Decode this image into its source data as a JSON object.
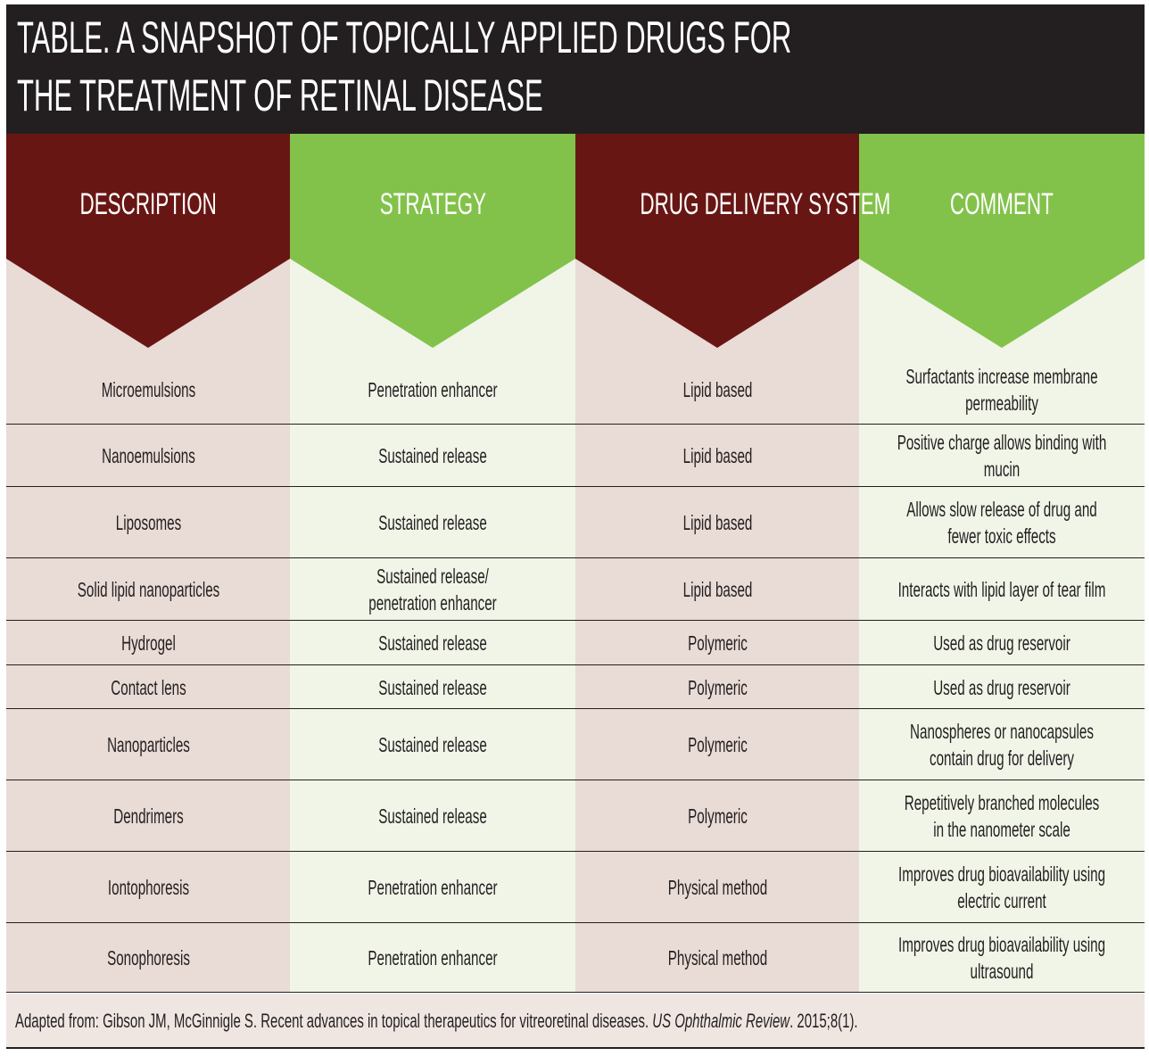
{
  "title": {
    "line1": "TABLE. A SNAPSHOT OF TOPICALLY APPLIED DRUGS FOR",
    "line2": "THE TREATMENT OF RETINAL DISEASE"
  },
  "colors": {
    "dark_red": "#681614",
    "green": "#82c24a",
    "title_bg": "#231f20",
    "pink_bg": "#e9dbd5",
    "light_green_bg": "#f0f5e8"
  },
  "headers": [
    "DESCRIPTION",
    "STRATEGY",
    "DRUG DELIVERY SYSTEM",
    "COMMENT"
  ],
  "rows": [
    [
      "Microemulsions",
      "Penetration enhancer",
      "Lipid based",
      "Surfactants increase membrane\npermeability"
    ],
    [
      "Nanoemulsions",
      "Sustained release",
      "Lipid based",
      "Positive charge allows binding with\nmucin"
    ],
    [
      "Liposomes",
      "Sustained release",
      "Lipid based",
      "Allows slow release of drug and\nfewer toxic effects"
    ],
    [
      "Solid lipid nanoparticles",
      "Sustained release/\npenetration enhancer",
      "Lipid based",
      "Interacts with lipid layer of tear film"
    ],
    [
      "Hydrogel",
      "Sustained release",
      "Polymeric",
      "Used as drug reservoir"
    ],
    [
      "Contact lens",
      "Sustained release",
      "Polymeric",
      "Used as drug reservoir"
    ],
    [
      "Nanoparticles",
      "Sustained release",
      "Polymeric",
      "Nanospheres or nanocapsules\ncontain drug for delivery"
    ],
    [
      "Dendrimers",
      "Sustained release",
      "Polymeric",
      "Repetitively branched molecules\nin the nanometer scale"
    ],
    [
      "Iontophoresis",
      "Penetration enhancer",
      "Physical method",
      "Improves drug bioavailability using\nelectric current"
    ],
    [
      "Sonophoresis",
      "Penetration enhancer",
      "Physical method",
      "Improves drug bioavailability using\nultrasound"
    ]
  ],
  "footer": {
    "text": "Adapted from: Gibson JM, McGinnigle S. Recent advances in topical therapeutics for vitreoretinal diseases. ",
    "journal": "US Ophthalmic Review",
    "citation": ". 2015;8(1)."
  }
}
